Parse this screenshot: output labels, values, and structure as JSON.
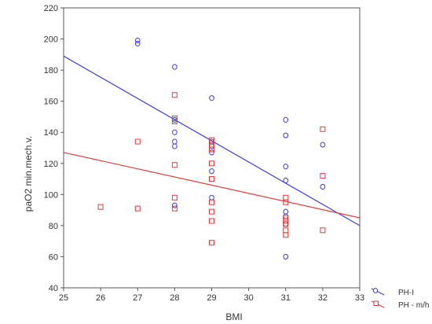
{
  "chart_data": {
    "type": "scatter",
    "xlabel": "BMI",
    "ylabel": "paO2 min.mech.v.",
    "xlim": [
      25,
      33
    ],
    "ylim": [
      40,
      220
    ],
    "x_ticks": [
      25,
      26,
      27,
      28,
      29,
      30,
      31,
      32,
      33
    ],
    "y_ticks": [
      40,
      60,
      80,
      100,
      120,
      140,
      160,
      180,
      200,
      220
    ],
    "grid": false,
    "legend_position": "bottom-right, outside plot",
    "series": [
      {
        "name": "PH-I",
        "marker": "circle",
        "color": "#3a3ae8",
        "points": [
          [
            27,
            199
          ],
          [
            27,
            197
          ],
          [
            28,
            182
          ],
          [
            28,
            148
          ],
          [
            28,
            140
          ],
          [
            28,
            134
          ],
          [
            28,
            131
          ],
          [
            28,
            93
          ],
          [
            29,
            162
          ],
          [
            29,
            134
          ],
          [
            29,
            131
          ],
          [
            29,
            127
          ],
          [
            29,
            115
          ],
          [
            29,
            98
          ],
          [
            31,
            148
          ],
          [
            31,
            138
          ],
          [
            31,
            118
          ],
          [
            31,
            109
          ],
          [
            31,
            89
          ],
          [
            31,
            86
          ],
          [
            31,
            81
          ],
          [
            31,
            60
          ],
          [
            32,
            132
          ],
          [
            32,
            105
          ]
        ],
        "fit": {
          "x": [
            25,
            33
          ],
          "y": [
            189,
            80
          ]
        }
      },
      {
        "name": "PH - m/h",
        "marker": "square",
        "color": "#e83a3a",
        "points": [
          [
            26,
            92
          ],
          [
            27,
            134
          ],
          [
            27,
            91
          ],
          [
            28,
            164
          ],
          [
            28,
            149
          ],
          [
            28,
            147
          ],
          [
            28,
            119
          ],
          [
            28,
            98
          ],
          [
            28,
            91
          ],
          [
            29,
            135
          ],
          [
            29,
            132
          ],
          [
            29,
            129
          ],
          [
            29,
            120
          ],
          [
            29,
            110
          ],
          [
            29,
            95
          ],
          [
            29,
            89
          ],
          [
            29,
            83
          ],
          [
            29,
            69
          ],
          [
            31,
            98
          ],
          [
            31,
            95
          ],
          [
            31,
            85
          ],
          [
            31,
            83
          ],
          [
            31,
            81
          ],
          [
            31,
            77
          ],
          [
            31,
            74
          ],
          [
            32,
            142
          ],
          [
            32,
            112
          ],
          [
            32,
            77
          ]
        ],
        "fit": {
          "x": [
            25,
            33
          ],
          "y": [
            127,
            85
          ]
        }
      }
    ]
  }
}
